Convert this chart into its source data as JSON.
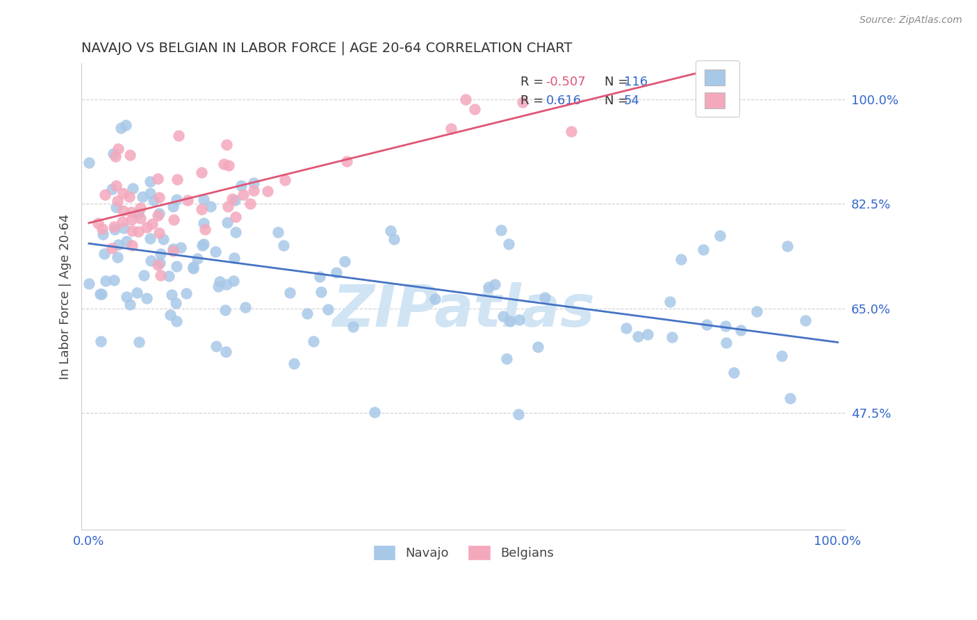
{
  "title": "NAVAJO VS BELGIAN IN LABOR FORCE | AGE 20-64 CORRELATION CHART",
  "source_text": "Source: ZipAtlas.com",
  "ylabel": "In Labor Force | Age 20-64",
  "navajo_R": -0.507,
  "navajo_N": 116,
  "belgian_R": 0.616,
  "belgian_N": 54,
  "navajo_color": "#a8c8e8",
  "navajo_line_color": "#4472c4",
  "belgian_color": "#f4a8bc",
  "belgian_line_color": "#e05575",
  "background_color": "#ffffff",
  "watermark_text": "ZIPatlas",
  "watermark_color": "#d0e4f4",
  "title_color": "#333333",
  "tick_color": "#3366cc",
  "label_color": "#444444",
  "grid_color": "#cccccc",
  "source_color": "#888888",
  "yticks": [
    0.475,
    0.65,
    0.825,
    1.0
  ],
  "ytick_labels": [
    "47.5%",
    "65.0%",
    "82.5%",
    "100.0%"
  ],
  "ylim_low": 0.28,
  "ylim_high": 1.06,
  "xlim_low": -0.01,
  "xlim_high": 1.01,
  "navajo_seed": 777,
  "belgian_seed": 42
}
